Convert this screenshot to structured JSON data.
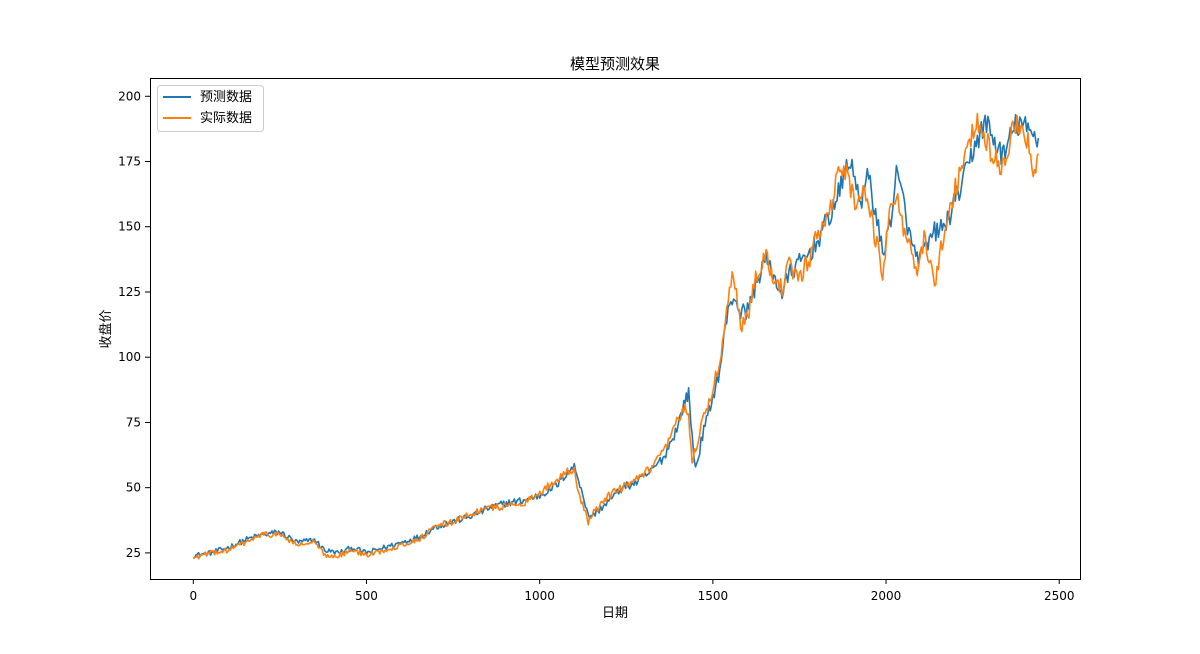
{
  "chart_data": {
    "type": "line",
    "title": "模型预测效果",
    "xlabel": "日期",
    "ylabel": "收盘价",
    "xlim": [
      -125,
      2560
    ],
    "ylim": [
      15,
      207
    ],
    "xticks": [
      0,
      500,
      1000,
      1500,
      2000,
      2500
    ],
    "yticks": [
      25,
      50,
      75,
      100,
      125,
      150,
      175,
      200
    ],
    "grid": false,
    "legend_position": "top-left",
    "series": [
      {
        "name": "预测数据",
        "color": "#1f77b4",
        "anchors": [
          [
            0,
            24
          ],
          [
            50,
            25
          ],
          [
            100,
            27
          ],
          [
            150,
            30
          ],
          [
            200,
            32
          ],
          [
            250,
            33
          ],
          [
            300,
            29
          ],
          [
            350,
            30
          ],
          [
            380,
            26
          ],
          [
            420,
            25
          ],
          [
            460,
            27
          ],
          [
            500,
            25
          ],
          [
            550,
            27
          ],
          [
            600,
            29
          ],
          [
            650,
            31
          ],
          [
            700,
            35
          ],
          [
            750,
            37
          ],
          [
            800,
            39
          ],
          [
            850,
            42
          ],
          [
            900,
            44
          ],
          [
            950,
            45
          ],
          [
            1000,
            47
          ],
          [
            1050,
            51
          ],
          [
            1080,
            56
          ],
          [
            1100,
            58
          ],
          [
            1120,
            50
          ],
          [
            1140,
            39
          ],
          [
            1160,
            40
          ],
          [
            1200,
            45
          ],
          [
            1240,
            50
          ],
          [
            1280,
            52
          ],
          [
            1320,
            56
          ],
          [
            1360,
            62
          ],
          [
            1400,
            74
          ],
          [
            1420,
            84
          ],
          [
            1430,
            86
          ],
          [
            1440,
            70
          ],
          [
            1450,
            57
          ],
          [
            1470,
            70
          ],
          [
            1500,
            85
          ],
          [
            1520,
            95
          ],
          [
            1540,
            115
          ],
          [
            1560,
            124
          ],
          [
            1580,
            117
          ],
          [
            1600,
            118
          ],
          [
            1620,
            126
          ],
          [
            1650,
            138
          ],
          [
            1680,
            130
          ],
          [
            1700,
            124
          ],
          [
            1720,
            132
          ],
          [
            1750,
            136
          ],
          [
            1780,
            140
          ],
          [
            1800,
            144
          ],
          [
            1840,
            155
          ],
          [
            1870,
            165
          ],
          [
            1890,
            176
          ],
          [
            1910,
            168
          ],
          [
            1930,
            160
          ],
          [
            1950,
            170
          ],
          [
            1970,
            155
          ],
          [
            1990,
            140
          ],
          [
            2010,
            150
          ],
          [
            2030,
            170
          ],
          [
            2050,
            160
          ],
          [
            2070,
            145
          ],
          [
            2090,
            138
          ],
          [
            2110,
            140
          ],
          [
            2140,
            148
          ],
          [
            2170,
            150
          ],
          [
            2200,
            160
          ],
          [
            2230,
            170
          ],
          [
            2260,
            183
          ],
          [
            2290,
            190
          ],
          [
            2310,
            183
          ],
          [
            2340,
            177
          ],
          [
            2370,
            188
          ],
          [
            2390,
            190
          ],
          [
            2410,
            186
          ],
          [
            2440,
            184
          ]
        ]
      },
      {
        "name": "实际数据",
        "color": "#ff7f0e",
        "anchors": [
          [
            0,
            23
          ],
          [
            50,
            25
          ],
          [
            100,
            26
          ],
          [
            150,
            29
          ],
          [
            200,
            32
          ],
          [
            250,
            32
          ],
          [
            300,
            28
          ],
          [
            350,
            29
          ],
          [
            380,
            24
          ],
          [
            420,
            24
          ],
          [
            460,
            26
          ],
          [
            500,
            24
          ],
          [
            550,
            26
          ],
          [
            600,
            28
          ],
          [
            650,
            30
          ],
          [
            700,
            35
          ],
          [
            750,
            37
          ],
          [
            800,
            40
          ],
          [
            850,
            42
          ],
          [
            900,
            43
          ],
          [
            950,
            44
          ],
          [
            1000,
            48
          ],
          [
            1050,
            53
          ],
          [
            1080,
            57
          ],
          [
            1100,
            56
          ],
          [
            1120,
            45
          ],
          [
            1140,
            37
          ],
          [
            1160,
            41
          ],
          [
            1200,
            47
          ],
          [
            1240,
            50
          ],
          [
            1280,
            53
          ],
          [
            1320,
            57
          ],
          [
            1360,
            64
          ],
          [
            1400,
            76
          ],
          [
            1420,
            80
          ],
          [
            1430,
            78
          ],
          [
            1440,
            60
          ],
          [
            1450,
            65
          ],
          [
            1470,
            75
          ],
          [
            1500,
            88
          ],
          [
            1520,
            98
          ],
          [
            1540,
            120
          ],
          [
            1560,
            133
          ],
          [
            1580,
            112
          ],
          [
            1600,
            115
          ],
          [
            1620,
            130
          ],
          [
            1650,
            140
          ],
          [
            1680,
            128
          ],
          [
            1700,
            127
          ],
          [
            1720,
            135
          ],
          [
            1750,
            130
          ],
          [
            1780,
            138
          ],
          [
            1800,
            147
          ],
          [
            1840,
            157
          ],
          [
            1870,
            175
          ],
          [
            1890,
            170
          ],
          [
            1910,
            158
          ],
          [
            1930,
            165
          ],
          [
            1950,
            158
          ],
          [
            1970,
            145
          ],
          [
            1990,
            132
          ],
          [
            2010,
            155
          ],
          [
            2030,
            165
          ],
          [
            2050,
            150
          ],
          [
            2070,
            140
          ],
          [
            2090,
            132
          ],
          [
            2110,
            145
          ],
          [
            2140,
            128
          ],
          [
            2170,
            150
          ],
          [
            2200,
            165
          ],
          [
            2230,
            178
          ],
          [
            2260,
            190
          ],
          [
            2290,
            182
          ],
          [
            2310,
            178
          ],
          [
            2340,
            172
          ],
          [
            2370,
            192
          ],
          [
            2390,
            185
          ],
          [
            2410,
            182
          ],
          [
            2425,
            170
          ],
          [
            2440,
            178
          ]
        ]
      }
    ]
  }
}
